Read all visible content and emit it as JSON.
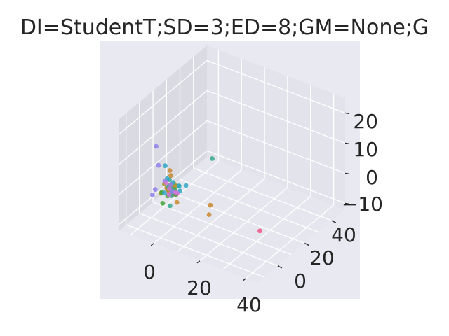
{
  "chart_data": {
    "type": "scatter",
    "projection": "3d",
    "title": "DI=StudentT;SD=3;ED=8;GM=None;G",
    "grid": true,
    "background": "#e9e9f1",
    "pane_colors": {
      "back": "#e3e3ec",
      "side": "#dadae3",
      "floor": "#e6e6ee"
    },
    "x_axis": {
      "label": "",
      "ticks": [
        "0",
        "20",
        "40"
      ],
      "range": [
        -15,
        45
      ]
    },
    "y_axis": {
      "label": "",
      "ticks": [
        "0",
        "20",
        "40"
      ],
      "range": [
        -15,
        50
      ]
    },
    "z_axis": {
      "label": "",
      "ticks": [
        "−10",
        "0",
        "10",
        "20"
      ],
      "range": [
        -12,
        25
      ]
    },
    "series": [
      {
        "color": "#f0568a",
        "points": [
          [
            -3,
            1,
            0
          ],
          [
            -2,
            -1,
            0
          ],
          [
            -1,
            -2,
            0
          ],
          [
            0,
            -1,
            -1
          ],
          [
            1,
            0,
            -1
          ],
          [
            -1,
            1,
            0
          ],
          [
            39,
            -3,
            -1
          ]
        ]
      },
      {
        "color": "#c9872e",
        "points": [
          [
            -3,
            2,
            5
          ],
          [
            -2,
            1,
            4
          ],
          [
            -1,
            -1,
            2
          ],
          [
            0,
            1,
            1
          ],
          [
            -2,
            -2,
            1
          ],
          [
            3,
            -3,
            -2
          ],
          [
            14,
            3,
            -2
          ],
          [
            17,
            -3,
            -2
          ]
        ]
      },
      {
        "color": "#9d9a29",
        "points": [
          [
            -3,
            -2,
            2
          ],
          [
            -1,
            2,
            1
          ],
          [
            -2,
            -1,
            0
          ],
          [
            0,
            1,
            -1
          ],
          [
            1,
            -2,
            0
          ],
          [
            -4,
            -3,
            -1
          ]
        ]
      },
      {
        "color": "#3fa535",
        "points": [
          [
            -3,
            -4,
            0
          ],
          [
            -1,
            -3,
            -1
          ],
          [
            0,
            0,
            -1
          ],
          [
            -2,
            2,
            -2
          ],
          [
            1,
            -1,
            1
          ],
          [
            -2,
            -5,
            -3
          ],
          [
            2,
            -2,
            0
          ]
        ]
      },
      {
        "color": "#36a98c",
        "points": [
          [
            -2,
            0,
            3
          ],
          [
            -1,
            -1,
            1
          ],
          [
            -3,
            1,
            0
          ],
          [
            0,
            -2,
            -1
          ],
          [
            1,
            2,
            1
          ],
          [
            -2,
            2,
            -1
          ],
          [
            0,
            -3,
            -4
          ],
          [
            -1,
            30,
            -1
          ]
        ]
      },
      {
        "color": "#2fa6c6",
        "points": [
          [
            -5,
            2,
            6
          ],
          [
            -3,
            0,
            3
          ],
          [
            -1,
            1,
            2
          ],
          [
            0,
            -1,
            0
          ],
          [
            2,
            1,
            0
          ],
          [
            -3,
            -2,
            -1
          ],
          [
            1,
            2,
            1
          ],
          [
            4,
            2,
            2
          ]
        ]
      },
      {
        "color": "#8f81ec",
        "points": [
          [
            -6,
            -3,
            14
          ],
          [
            -5,
            -3,
            8
          ],
          [
            -4,
            0,
            2
          ],
          [
            -2,
            1,
            1
          ],
          [
            0,
            -1,
            0
          ],
          [
            -7,
            -4,
            -2
          ],
          [
            -7,
            -2,
            -1
          ]
        ]
      },
      {
        "color": "#cf74d7",
        "points": [
          [
            -4,
            1,
            1
          ],
          [
            -2,
            0,
            0
          ],
          [
            -1,
            -2,
            -1
          ],
          [
            0,
            1,
            -1
          ],
          [
            2,
            -1,
            0
          ]
        ]
      }
    ]
  }
}
